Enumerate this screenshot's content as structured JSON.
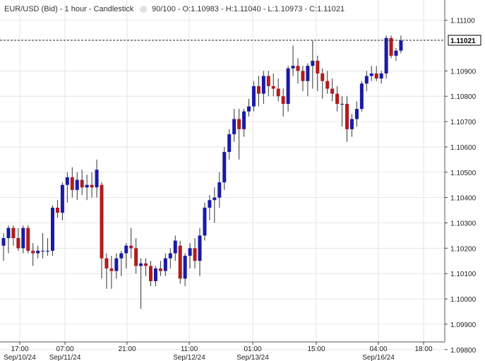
{
  "header": {
    "title": "EUR/USD (Bid) - 1 hour - Candlestick",
    "icon": "eye-icon",
    "ohlc": "90/100 - O:1.10983 - H:1.11040 - L:1.10973 - C:1.11021"
  },
  "colors": {
    "up": "#1a1aa6",
    "down": "#b01c1c",
    "grid": "#e6e6e6",
    "current_line": "#222222"
  },
  "current_price_label": "1.11021",
  "chart_data": {
    "type": "candlestick",
    "title": "EUR/USD (Bid) - 1 hour - Candlestick",
    "ylim": [
      1.0983,
      1.1118
    ],
    "y_ticks": [
      "1.11100",
      "1.10900",
      "1.10800",
      "1.10700",
      "1.10600",
      "1.10500",
      "1.10400",
      "1.10300",
      "1.10200",
      "1.10100",
      "1.10000",
      "1.09900",
      "1.09800"
    ],
    "x_ticks": [
      {
        "line1": "17:00",
        "line2": "Sep/10/24"
      },
      {
        "line1": "07:00",
        "line2": "Sep/11/24"
      },
      {
        "line1": "21:00",
        "line2": ""
      },
      {
        "line1": "11:00",
        "line2": "Sep/12/24"
      },
      {
        "line1": "01:00",
        "line2": "Sep/13/24"
      },
      {
        "line1": "15:00",
        "line2": ""
      },
      {
        "line1": "04:00",
        "line2": "Sep/16/24"
      },
      {
        "line1": "18:00",
        "line2": ""
      }
    ],
    "current_price": 1.11021,
    "grid": true,
    "candles": [
      [
        1.1021,
        1.1026,
        1.1015,
        1.1024
      ],
      [
        1.1024,
        1.1029,
        1.1018,
        1.1028
      ],
      [
        1.1028,
        1.1029,
        1.1021,
        1.1024
      ],
      [
        1.1024,
        1.1028,
        1.1019,
        1.102
      ],
      [
        1.102,
        1.1029,
        1.1018,
        1.1028
      ],
      [
        1.1028,
        1.1029,
        1.1018,
        1.1019
      ],
      [
        1.1019,
        1.1022,
        1.1013,
        1.1018
      ],
      [
        1.1018,
        1.1021,
        1.1016,
        1.1019
      ],
      [
        1.1019,
        1.1026,
        1.1016,
        1.1019
      ],
      [
        1.1019,
        1.1024,
        1.1017,
        1.1019
      ],
      [
        1.1019,
        1.1037,
        1.1017,
        1.1036
      ],
      [
        1.1036,
        1.1039,
        1.1032,
        1.1034
      ],
      [
        1.1034,
        1.1046,
        1.1031,
        1.1045
      ],
      [
        1.1045,
        1.105,
        1.1038,
        1.1048
      ],
      [
        1.1048,
        1.1052,
        1.104,
        1.1043
      ],
      [
        1.1043,
        1.105,
        1.1039,
        1.1047
      ],
      [
        1.1047,
        1.1051,
        1.1041,
        1.1044
      ],
      [
        1.1044,
        1.1049,
        1.1039,
        1.1045
      ],
      [
        1.1045,
        1.105,
        1.104,
        1.1044
      ],
      [
        1.1044,
        1.1055,
        1.104,
        1.1051
      ],
      [
        1.1045,
        1.1046,
        1.1008,
        1.1016
      ],
      [
        1.1016,
        1.1018,
        1.1004,
        1.1012
      ],
      [
        1.1012,
        1.1017,
        1.1004,
        1.1011
      ],
      [
        1.1011,
        1.1018,
        1.1008,
        1.1016
      ],
      [
        1.1016,
        1.1019,
        1.1009,
        1.1018
      ],
      [
        1.1018,
        1.1022,
        1.1012,
        1.1021
      ],
      [
        1.1021,
        1.1028,
        1.1016,
        1.102
      ],
      [
        1.102,
        1.1024,
        1.101,
        1.1013
      ],
      [
        1.1013,
        1.1016,
        1.0996,
        1.1014
      ],
      [
        1.1014,
        1.1016,
        1.1009,
        1.1013
      ],
      [
        1.1013,
        1.1015,
        1.1005,
        1.1007
      ],
      [
        1.1007,
        1.1013,
        1.1005,
        1.1012
      ],
      [
        1.1012,
        1.1015,
        1.1009,
        1.1011
      ],
      [
        1.1011,
        1.1018,
        1.1009,
        1.1016
      ],
      [
        1.1016,
        1.102,
        1.1012,
        1.1018
      ],
      [
        1.1018,
        1.1025,
        1.1015,
        1.1023
      ],
      [
        1.1021,
        1.1023,
        1.1006,
        1.1008
      ],
      [
        1.1008,
        1.1018,
        1.1005,
        1.1017
      ],
      [
        1.1017,
        1.1022,
        1.1012,
        1.102
      ],
      [
        1.102,
        1.1024,
        1.1012,
        1.1015
      ],
      [
        1.1015,
        1.1028,
        1.1009,
        1.1025
      ],
      [
        1.1025,
        1.1038,
        1.1023,
        1.1036
      ],
      [
        1.1036,
        1.1041,
        1.1031,
        1.1039
      ],
      [
        1.1039,
        1.1044,
        1.103,
        1.104
      ],
      [
        1.104,
        1.105,
        1.1036,
        1.1046
      ],
      [
        1.1046,
        1.106,
        1.1043,
        1.1058
      ],
      [
        1.1058,
        1.1067,
        1.1055,
        1.1065
      ],
      [
        1.1065,
        1.1075,
        1.1062,
        1.1071
      ],
      [
        1.1071,
        1.1075,
        1.1055,
        1.1067
      ],
      [
        1.1067,
        1.1075,
        1.1064,
        1.1074
      ],
      [
        1.1074,
        1.1079,
        1.1072,
        1.1076
      ],
      [
        1.1076,
        1.1086,
        1.1074,
        1.1084
      ],
      [
        1.1084,
        1.1088,
        1.1076,
        1.1081
      ],
      [
        1.1081,
        1.109,
        1.1077,
        1.1088
      ],
      [
        1.1088,
        1.109,
        1.108,
        1.1084
      ],
      [
        1.1084,
        1.1089,
        1.108,
        1.1083
      ],
      [
        1.1083,
        1.1087,
        1.1078,
        1.108
      ],
      [
        1.108,
        1.1083,
        1.1072,
        1.1077
      ],
      [
        1.1077,
        1.1092,
        1.1074,
        1.1091
      ],
      [
        1.1091,
        1.11,
        1.1088,
        1.1092
      ],
      [
        1.1092,
        1.1095,
        1.1085,
        1.109
      ],
      [
        1.109,
        1.1092,
        1.1082,
        1.1086
      ],
      [
        1.1086,
        1.1093,
        1.108,
        1.1092
      ],
      [
        1.1092,
        1.1102,
        1.1083,
        1.1094
      ],
      [
        1.1094,
        1.1096,
        1.1082,
        1.1089
      ],
      [
        1.1089,
        1.1091,
        1.1079,
        1.1086
      ],
      [
        1.1086,
        1.109,
        1.1081,
        1.1083
      ],
      [
        1.1083,
        1.1087,
        1.1078,
        1.1081
      ],
      [
        1.1081,
        1.1084,
        1.1074,
        1.1077
      ],
      [
        1.1077,
        1.108,
        1.1068,
        1.1077
      ],
      [
        1.1077,
        1.108,
        1.1062,
        1.1067
      ],
      [
        1.1067,
        1.1073,
        1.1064,
        1.1071
      ],
      [
        1.1071,
        1.1078,
        1.1068,
        1.1075
      ],
      [
        1.1075,
        1.1086,
        1.1074,
        1.1085
      ],
      [
        1.1085,
        1.109,
        1.1082,
        1.1088
      ],
      [
        1.1088,
        1.1092,
        1.1086,
        1.1089
      ],
      [
        1.1089,
        1.1092,
        1.1086,
        1.1087
      ],
      [
        1.1087,
        1.109,
        1.1085,
        1.1089
      ],
      [
        1.1089,
        1.1104,
        1.1087,
        1.1103
      ],
      [
        1.1103,
        1.1104,
        1.1095,
        1.1096
      ],
      [
        1.1096,
        1.1099,
        1.1094,
        1.1098
      ],
      [
        1.1098,
        1.1104,
        1.1097,
        1.1102
      ]
    ]
  }
}
